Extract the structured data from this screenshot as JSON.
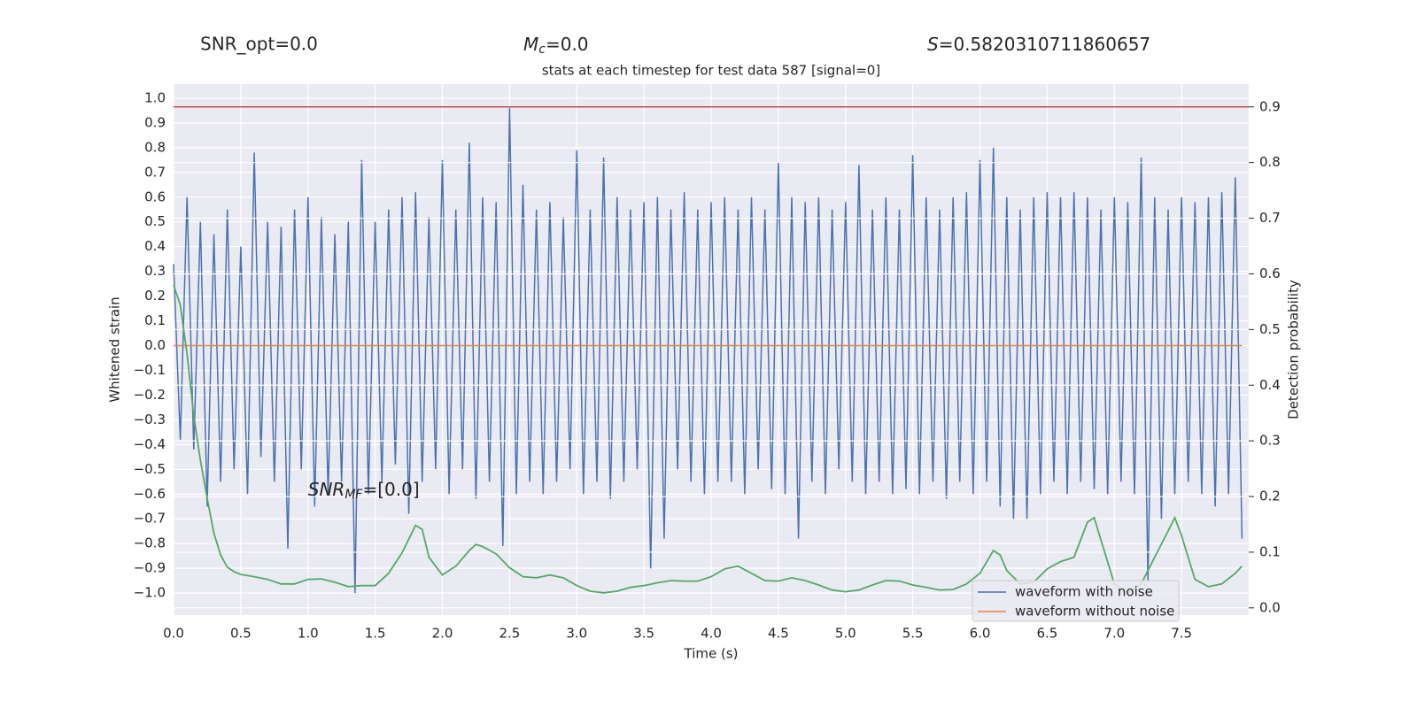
{
  "chart_data": {
    "type": "line",
    "title": "stats at each timestep for test data 587 [signal=0]",
    "annotations": {
      "snr_opt": "SNR_opt=0.0",
      "chirp_mass": {
        "symbol": "M",
        "subscript": "c",
        "text": "=0.0"
      },
      "score": {
        "symbol": "S",
        "text": "=0.5820310711860657"
      },
      "snr_mf": {
        "symbol": "SNR",
        "subscript": "MF",
        "text": "=[0.0]"
      }
    },
    "x_label": "Time (s)",
    "y_label": "Whitened strain",
    "y2_label": "Detection probability",
    "xlim": [
      0,
      8
    ],
    "ylim": [
      -1.089,
      1.057
    ],
    "y2lim": [
      -0.013,
      0.941
    ],
    "grid": true,
    "legend": "lower right",
    "xticks": [
      {
        "value": 0,
        "label": "0.0"
      },
      {
        "value": 0.5,
        "label": "0.5"
      },
      {
        "value": 1,
        "label": "1.0"
      },
      {
        "value": 1.5,
        "label": "1.5"
      },
      {
        "value": 2,
        "label": "2.0"
      },
      {
        "value": 2.5,
        "label": "2.5"
      },
      {
        "value": 3,
        "label": "3.0"
      },
      {
        "value": 3.5,
        "label": "3.5"
      },
      {
        "value": 4,
        "label": "4.0"
      },
      {
        "value": 4.5,
        "label": "4.5"
      },
      {
        "value": 5,
        "label": "5.0"
      },
      {
        "value": 5.5,
        "label": "5.5"
      },
      {
        "value": 6,
        "label": "6.0"
      },
      {
        "value": 6.5,
        "label": "6.5"
      },
      {
        "value": 7,
        "label": "7.0"
      },
      {
        "value": 7.5,
        "label": "7.5"
      }
    ],
    "yticks": [
      {
        "value": -1,
        "label": "−1.0"
      },
      {
        "value": -0.9,
        "label": "−0.9"
      },
      {
        "value": -0.8,
        "label": "−0.8"
      },
      {
        "value": -0.7,
        "label": "−0.7"
      },
      {
        "value": -0.6,
        "label": "−0.6"
      },
      {
        "value": -0.5,
        "label": "−0.5"
      },
      {
        "value": -0.4,
        "label": "−0.4"
      },
      {
        "value": -0.3,
        "label": "−0.3"
      },
      {
        "value": -0.2,
        "label": "−0.2"
      },
      {
        "value": -0.1,
        "label": "−0.1"
      },
      {
        "value": 0,
        "label": "0.0"
      },
      {
        "value": 0.1,
        "label": "0.1"
      },
      {
        "value": 0.2,
        "label": "0.2"
      },
      {
        "value": 0.3,
        "label": "0.3"
      },
      {
        "value": 0.4,
        "label": "0.4"
      },
      {
        "value": 0.5,
        "label": "0.5"
      },
      {
        "value": 0.6,
        "label": "0.6"
      },
      {
        "value": 0.7,
        "label": "0.7"
      },
      {
        "value": 0.8,
        "label": "0.8"
      },
      {
        "value": 0.9,
        "label": "0.9"
      },
      {
        "value": 1,
        "label": "1.0"
      }
    ],
    "y2ticks": [
      {
        "value": 0,
        "label": "0.0"
      },
      {
        "value": 0.1,
        "label": "0.1"
      },
      {
        "value": 0.2,
        "label": "0.2"
      },
      {
        "value": 0.3,
        "label": "0.3"
      },
      {
        "value": 0.4,
        "label": "0.4"
      },
      {
        "value": 0.5,
        "label": "0.5"
      },
      {
        "value": 0.6,
        "label": "0.6"
      },
      {
        "value": 0.7,
        "label": "0.7"
      },
      {
        "value": 0.8,
        "label": "0.8"
      },
      {
        "value": 0.9,
        "label": "0.9"
      }
    ],
    "series": [
      {
        "name": "waveform with noise",
        "color": "#4c72b0",
        "x": [
          0,
          0.05,
          0.1,
          0.15,
          0.2,
          0.25,
          0.3,
          0.35,
          0.4,
          0.45,
          0.5,
          0.55,
          0.6,
          0.65,
          0.7,
          0.75,
          0.8,
          0.85,
          0.9,
          0.95,
          1,
          1.05,
          1.1,
          1.15,
          1.2,
          1.25,
          1.3,
          1.35,
          1.4,
          1.45,
          1.5,
          1.55,
          1.6,
          1.65,
          1.7,
          1.75,
          1.8,
          1.85,
          1.9,
          1.95,
          2,
          2.05,
          2.1,
          2.15,
          2.2,
          2.25,
          2.3,
          2.35,
          2.4,
          2.45,
          2.5,
          2.55,
          2.6,
          2.65,
          2.7,
          2.75,
          2.8,
          2.85,
          2.9,
          2.95,
          3,
          3.05,
          3.1,
          3.15,
          3.2,
          3.25,
          3.3,
          3.35,
          3.4,
          3.45,
          3.5,
          3.55,
          3.6,
          3.65,
          3.7,
          3.75,
          3.8,
          3.85,
          3.9,
          3.95,
          4,
          4.05,
          4.1,
          4.15,
          4.2,
          4.25,
          4.3,
          4.35,
          4.4,
          4.45,
          4.5,
          4.55,
          4.6,
          4.65,
          4.7,
          4.75,
          4.8,
          4.85,
          4.9,
          4.95,
          5,
          5.05,
          5.1,
          5.15,
          5.2,
          5.25,
          5.3,
          5.35,
          5.4,
          5.45,
          5.5,
          5.55,
          5.6,
          5.65,
          5.7,
          5.75,
          5.8,
          5.85,
          5.9,
          5.95,
          6,
          6.05,
          6.1,
          6.15,
          6.2,
          6.25,
          6.3,
          6.35,
          6.4,
          6.45,
          6.5,
          6.55,
          6.6,
          6.65,
          6.7,
          6.75,
          6.8,
          6.85,
          6.9,
          6.95,
          7,
          7.05,
          7.1,
          7.15,
          7.2,
          7.25,
          7.3,
          7.35,
          7.4,
          7.45,
          7.5,
          7.55,
          7.6,
          7.65,
          7.7,
          7.75,
          7.8,
          7.85,
          7.9,
          7.95
        ],
        "values": [
          0.33,
          -0.38,
          0.6,
          -0.42,
          0.5,
          -0.65,
          0.45,
          -0.55,
          0.55,
          -0.5,
          0.4,
          -0.6,
          0.78,
          -0.45,
          0.5,
          -0.55,
          0.48,
          -0.82,
          0.55,
          -0.5,
          0.6,
          -0.65,
          0.52,
          -0.6,
          0.45,
          -0.55,
          0.5,
          -1.0,
          0.75,
          -0.6,
          0.5,
          -0.55,
          0.55,
          -0.48,
          0.6,
          -0.68,
          0.62,
          -0.55,
          0.52,
          -0.5,
          0.75,
          -0.6,
          0.55,
          -0.5,
          0.82,
          -0.62,
          0.6,
          -0.55,
          0.58,
          -0.81,
          0.96,
          -0.6,
          0.65,
          -0.55,
          0.55,
          -0.6,
          0.58,
          -0.55,
          0.52,
          -0.5,
          0.79,
          -0.6,
          0.55,
          -0.55,
          0.76,
          -0.62,
          0.6,
          -0.55,
          0.55,
          -0.5,
          0.58,
          -0.9,
          0.6,
          -0.78,
          0.55,
          -0.5,
          0.62,
          -0.55,
          0.55,
          -0.6,
          0.58,
          -0.55,
          0.6,
          -0.55,
          0.55,
          -0.6,
          0.6,
          -0.5,
          0.55,
          -0.58,
          0.74,
          -0.6,
          0.6,
          -0.78,
          0.58,
          -0.55,
          0.6,
          -0.6,
          0.55,
          -0.5,
          0.58,
          -0.55,
          0.73,
          -0.6,
          0.55,
          -0.55,
          0.6,
          -0.6,
          0.55,
          -0.58,
          0.77,
          -0.6,
          0.6,
          -0.55,
          0.55,
          -0.62,
          0.6,
          -0.55,
          0.62,
          -0.6,
          0.75,
          -0.55,
          0.8,
          -0.65,
          0.6,
          -0.7,
          0.55,
          -0.7,
          0.6,
          -0.6,
          0.62,
          -0.55,
          0.6,
          -0.6,
          0.62,
          -0.55,
          0.6,
          -0.58,
          0.55,
          -0.6,
          0.6,
          -0.55,
          0.58,
          -0.6,
          0.76,
          -0.95,
          0.6,
          -0.7,
          0.55,
          -0.6,
          0.6,
          -0.55,
          0.58,
          -0.6,
          0.6,
          -0.65,
          0.62,
          -0.6,
          0.68,
          -0.78
        ]
      },
      {
        "name": "waveform without noise",
        "color": "#dd8452",
        "x": [
          0,
          7.95
        ],
        "values": [
          0,
          0
        ]
      }
    ],
    "probability": {
      "color": "#55a868",
      "axis": "y2",
      "x": [
        0,
        0.05,
        0.1,
        0.15,
        0.2,
        0.25,
        0.3,
        0.35,
        0.4,
        0.45,
        0.5,
        0.6,
        0.7,
        0.8,
        0.9,
        1,
        1.1,
        1.2,
        1.3,
        1.4,
        1.5,
        1.6,
        1.7,
        1.8,
        1.85,
        1.9,
        2,
        2.1,
        2.2,
        2.25,
        2.3,
        2.4,
        2.5,
        2.6,
        2.7,
        2.8,
        2.9,
        3,
        3.1,
        3.2,
        3.3,
        3.4,
        3.5,
        3.6,
        3.7,
        3.8,
        3.9,
        4,
        4.1,
        4.2,
        4.3,
        4.4,
        4.5,
        4.6,
        4.7,
        4.8,
        4.9,
        5,
        5.1,
        5.2,
        5.3,
        5.4,
        5.5,
        5.6,
        5.7,
        5.8,
        5.9,
        6,
        6.1,
        6.15,
        6.2,
        6.3,
        6.4,
        6.5,
        6.6,
        6.7,
        6.8,
        6.85,
        6.9,
        7,
        7.1,
        7.2,
        7.3,
        7.4,
        7.45,
        7.5,
        7.6,
        7.7,
        7.8,
        7.9,
        7.95
      ],
      "values": [
        0.58,
        0.544,
        0.456,
        0.345,
        0.265,
        0.197,
        0.134,
        0.095,
        0.073,
        0.065,
        0.06,
        0.056,
        0.051,
        0.043,
        0.043,
        0.051,
        0.052,
        0.046,
        0.038,
        0.04,
        0.04,
        0.062,
        0.099,
        0.148,
        0.141,
        0.091,
        0.059,
        0.075,
        0.103,
        0.114,
        0.11,
        0.097,
        0.072,
        0.056,
        0.054,
        0.059,
        0.054,
        0.04,
        0.03,
        0.027,
        0.03,
        0.037,
        0.04,
        0.045,
        0.049,
        0.048,
        0.048,
        0.056,
        0.07,
        0.075,
        0.062,
        0.049,
        0.048,
        0.054,
        0.049,
        0.041,
        0.032,
        0.029,
        0.032,
        0.041,
        0.049,
        0.048,
        0.041,
        0.037,
        0.032,
        0.033,
        0.043,
        0.062,
        0.103,
        0.095,
        0.067,
        0.043,
        0.046,
        0.07,
        0.083,
        0.091,
        0.154,
        0.162,
        0.122,
        0.043,
        0.027,
        0.043,
        0.091,
        0.138,
        0.162,
        0.13,
        0.051,
        0.038,
        0.043,
        0.062,
        0.075
      ]
    },
    "threshold": {
      "color": "#c44e52",
      "axis": "y2",
      "value": 0.9
    }
  }
}
